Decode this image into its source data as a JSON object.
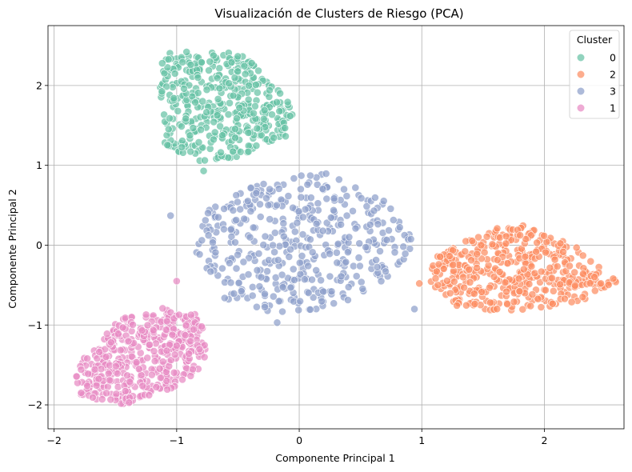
{
  "chart_data": {
    "type": "scatter",
    "title": "Visualización de Clusters de Riesgo (PCA)",
    "xlabel": "Componente Principal 1",
    "ylabel": "Componente Principal 2",
    "xlim": [
      -2.05,
      2.65
    ],
    "ylim": [
      -2.3,
      2.75
    ],
    "xticks": [
      -2,
      -1,
      0,
      1,
      2
    ],
    "yticks": [
      -2,
      -1,
      0,
      1,
      2
    ],
    "xtick_labels": [
      "−2",
      "−1",
      "0",
      "1",
      "2"
    ],
    "ytick_labels": [
      "−2",
      "−1",
      "0",
      "1",
      "2"
    ],
    "grid": true,
    "legend": {
      "title": "Cluster",
      "placement": "top-right",
      "order": [
        "0",
        "2",
        "3",
        "1"
      ]
    },
    "series": [
      {
        "name": "0",
        "color": "#66c2a5",
        "center": [
          -0.6,
          1.8
        ],
        "approx_extent": {
          "x": [
            -1.15,
            -0.05
          ],
          "y": [
            1.05,
            2.5
          ]
        },
        "shape": "triangle pointing down",
        "hull": [
          [
            -1.1,
            2.45
          ],
          [
            -0.45,
            2.4
          ],
          [
            -0.05,
            1.75
          ],
          [
            -0.05,
            1.4
          ],
          [
            -0.5,
            1.1
          ],
          [
            -0.85,
            1.05
          ],
          [
            -1.1,
            1.25
          ],
          [
            -1.15,
            2.0
          ]
        ]
      },
      {
        "name": "2",
        "color": "#fc8d62",
        "center": [
          1.75,
          -0.3
        ],
        "approx_extent": {
          "x": [
            1.0,
            2.6
          ],
          "y": [
            -0.85,
            0.25
          ]
        },
        "shape": "diamond",
        "hull": [
          [
            1.1,
            -0.15
          ],
          [
            1.55,
            0.2
          ],
          [
            1.85,
            0.25
          ],
          [
            2.3,
            -0.05
          ],
          [
            2.6,
            -0.45
          ],
          [
            2.3,
            -0.7
          ],
          [
            1.75,
            -0.85
          ],
          [
            1.25,
            -0.75
          ],
          [
            1.05,
            -0.45
          ]
        ]
      },
      {
        "name": "3",
        "color": "#8da0cb",
        "center": [
          0.0,
          0.0
        ],
        "approx_extent": {
          "x": [
            -0.85,
            0.95
          ],
          "y": [
            -0.9,
            0.95
          ]
        },
        "shape": "tilted ellipse",
        "hull": [
          [
            -0.75,
            0.5
          ],
          [
            -0.2,
            0.85
          ],
          [
            0.25,
            0.9
          ],
          [
            0.7,
            0.55
          ],
          [
            0.95,
            0.05
          ],
          [
            0.85,
            -0.35
          ],
          [
            0.25,
            -0.8
          ],
          [
            -0.25,
            -0.85
          ],
          [
            -0.6,
            -0.75
          ],
          [
            -0.85,
            -0.1
          ]
        ]
      },
      {
        "name": "1",
        "color": "#e78ac3",
        "center": [
          -1.35,
          -1.4
        ],
        "approx_extent": {
          "x": [
            -1.85,
            -0.75
          ],
          "y": [
            -2.05,
            -0.65
          ]
        },
        "shape": "ellipse",
        "hull": [
          [
            -1.7,
            -1.3
          ],
          [
            -1.45,
            -0.9
          ],
          [
            -1.0,
            -0.75
          ],
          [
            -0.8,
            -0.9
          ],
          [
            -0.75,
            -1.45
          ],
          [
            -1.0,
            -1.8
          ],
          [
            -1.45,
            -2.0
          ],
          [
            -1.8,
            -1.9
          ],
          [
            -1.85,
            -1.6
          ]
        ]
      }
    ],
    "stray_points": [
      {
        "series": "3",
        "x": -1.05,
        "y": 0.37
      },
      {
        "series": "3",
        "x": -0.18,
        "y": -0.97
      },
      {
        "series": "3",
        "x": 0.94,
        "y": -0.8
      },
      {
        "series": "2",
        "x": 0.98,
        "y": -0.48
      },
      {
        "series": "0",
        "x": -0.78,
        "y": 0.93
      },
      {
        "series": "1",
        "x": -1.0,
        "y": -0.45
      }
    ]
  }
}
